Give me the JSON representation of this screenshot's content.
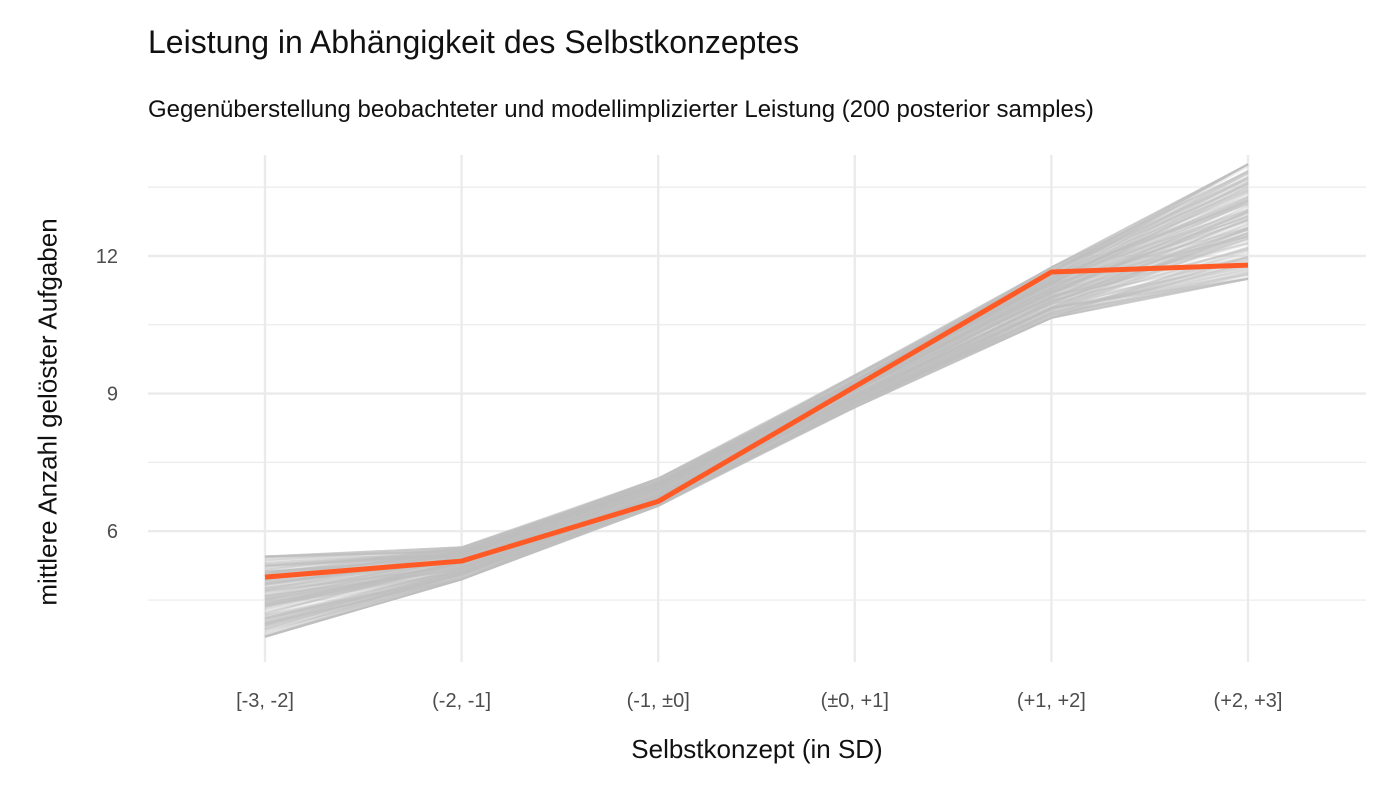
{
  "chart_data": {
    "type": "line",
    "title": "Leistung in Abhängigkeit des Selbstkonzeptes",
    "subtitle": "Gegenüberstellung beobachteter und modellimplizierter Leistung (200 posterior samples)",
    "xlabel": "Selbstkonzept (in SD)",
    "ylabel": "mittlere Anzahl gelöster Aufgaben",
    "categories": [
      "[-3, -2]",
      "(-2, -1]",
      "(-1, ±0]",
      "(±0, +1]",
      "(+1, +2]",
      "(+2, +3]"
    ],
    "y_ticks": [
      6,
      9,
      12
    ],
    "ylim": [
      3.15,
      14.2
    ],
    "grid": true,
    "legend": "none",
    "colors": {
      "observed": "#ff5a26",
      "samples": "#bdbdbd",
      "grid": "#ebebeb"
    },
    "series": [
      {
        "values": [
          5.0,
          5.35,
          6.65,
          9.15,
          11.65,
          11.8
        ]
      }
    ],
    "posterior_band": {
      "lower": [
        3.7,
        4.95,
        6.55,
        8.7,
        10.65,
        11.5
      ],
      "upper": [
        5.45,
        5.65,
        7.15,
        9.4,
        11.75,
        14.0
      ]
    }
  }
}
